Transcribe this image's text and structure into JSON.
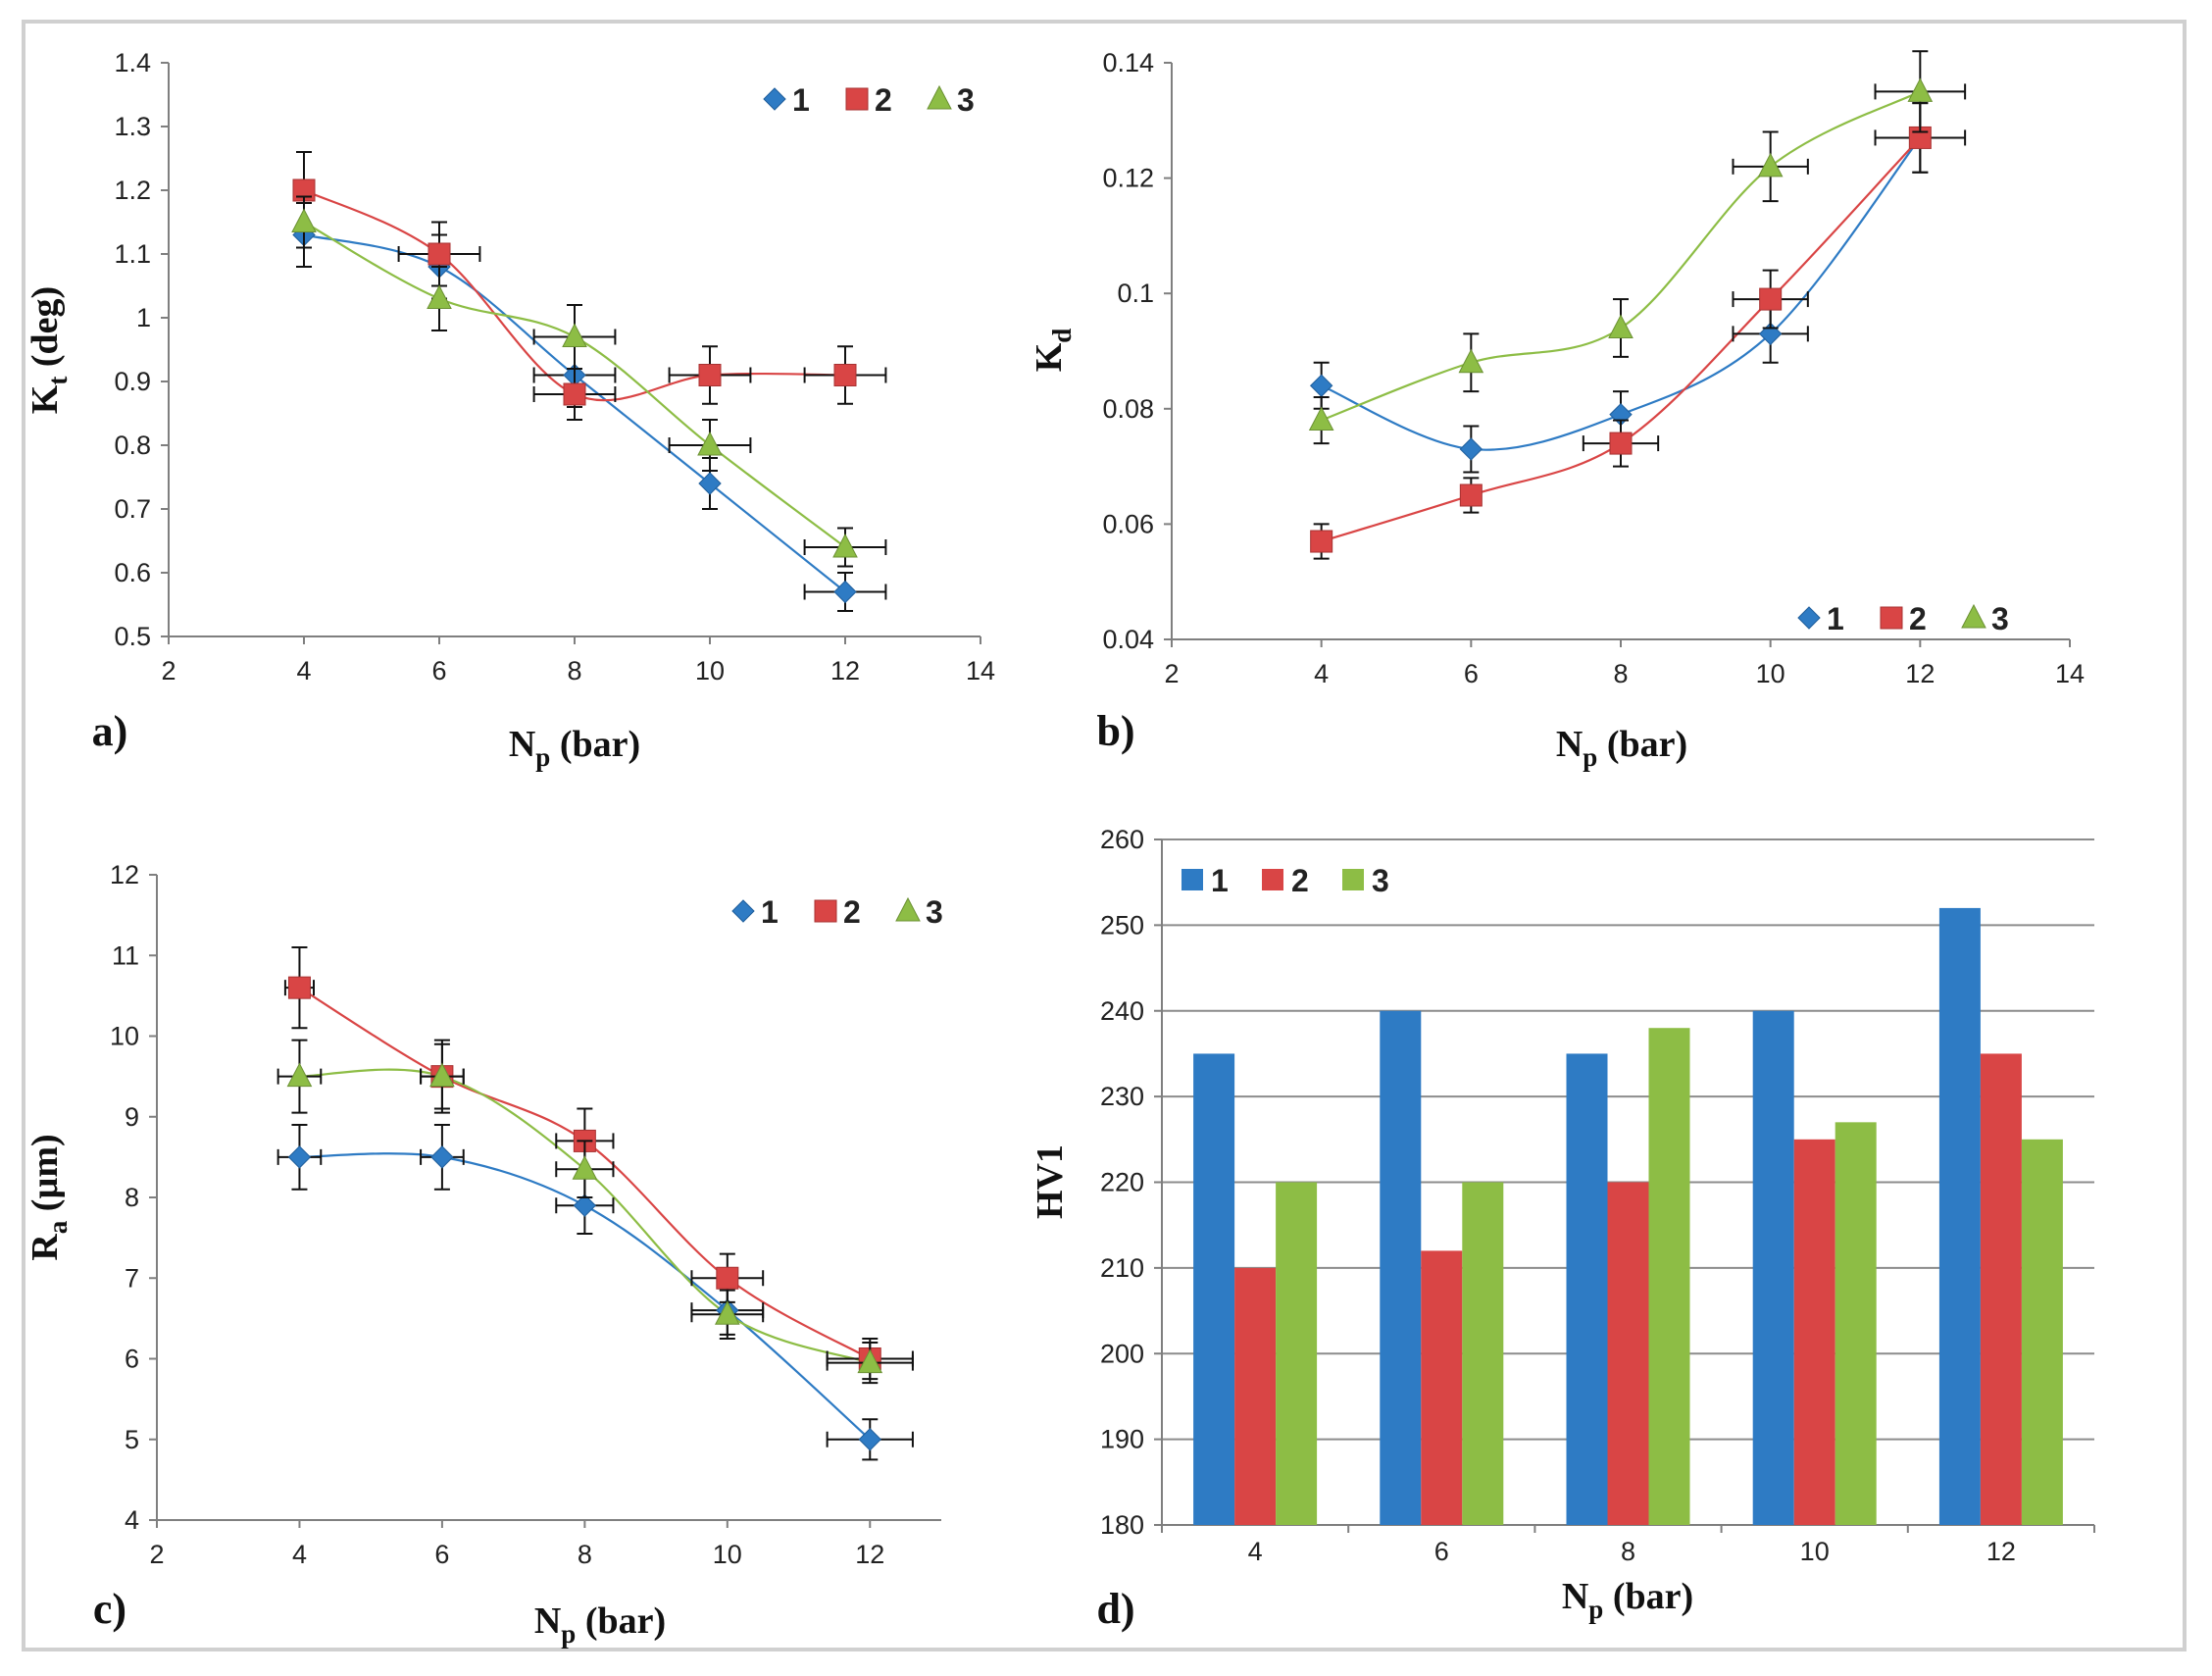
{
  "colors": {
    "s1": "#2E7BC4",
    "s2": "#D94545",
    "s3": "#8DBD45",
    "axis": "#7f7f7f",
    "grid": "#8c8c8c"
  },
  "chart_data": [
    {
      "type": "scatter",
      "panel_label": "a)",
      "xlabel": {
        "main": "N",
        "sub": "p",
        "rest": " (bar)"
      },
      "ylabel": {
        "main": "K",
        "sub": "t",
        "rest": " (deg)"
      },
      "xlim": [
        2,
        14
      ],
      "xticks": [
        "2",
        "4",
        "6",
        "8",
        "10",
        "12",
        "14"
      ],
      "ylim": [
        0.5,
        1.4
      ],
      "yticks": [
        "0.5",
        "0.6",
        "0.7",
        "0.8",
        "0.9",
        "1",
        "1.1",
        "1.2",
        "1.3",
        "1.4"
      ],
      "legend": [
        "1",
        "2",
        "3"
      ],
      "series": [
        {
          "name": "1",
          "x": [
            4,
            6,
            8,
            10,
            12
          ],
          "y": [
            1.13,
            1.08,
            0.91,
            0.74,
            0.57
          ],
          "yerr": [
            0.05,
            0.05,
            0.05,
            0.04,
            0.03
          ],
          "xerr": [
            0,
            0,
            0.6,
            0,
            0.6
          ]
        },
        {
          "name": "2",
          "x": [
            4,
            6,
            8,
            10,
            12
          ],
          "y": [
            1.2,
            1.1,
            0.88,
            0.91,
            0.91
          ],
          "yerr": [
            0.06,
            0.05,
            0.04,
            0.045,
            0.045
          ],
          "xerr": [
            0,
            0.6,
            0.6,
            0.6,
            0.6
          ]
        },
        {
          "name": "3",
          "x": [
            4,
            6,
            8,
            10,
            12
          ],
          "y": [
            1.15,
            1.03,
            0.97,
            0.8,
            0.64
          ],
          "yerr": [
            0.04,
            0.05,
            0.05,
            0.04,
            0.03
          ],
          "xerr": [
            0,
            0,
            0.6,
            0.6,
            0.6
          ]
        }
      ]
    },
    {
      "type": "scatter",
      "panel_label": "b)",
      "xlabel": {
        "main": "N",
        "sub": "p",
        "rest": " (bar)"
      },
      "ylabel": {
        "main": "K",
        "sub": "d",
        "rest": ""
      },
      "xlim": [
        2,
        14
      ],
      "xticks": [
        "2",
        "4",
        "6",
        "8",
        "10",
        "12",
        "14"
      ],
      "ylim": [
        0.04,
        0.14
      ],
      "yticks": [
        "0.04",
        "0.06",
        "0.08",
        "0.1",
        "0.12",
        "0.14"
      ],
      "legend": [
        "1",
        "2",
        "3"
      ],
      "series": [
        {
          "name": "1",
          "x": [
            4,
            6,
            8,
            10,
            12
          ],
          "y": [
            0.084,
            0.073,
            0.079,
            0.093,
            0.127
          ],
          "yerr": [
            0.004,
            0.004,
            0.004,
            0.005,
            0.006
          ],
          "xerr": [
            0,
            0,
            0,
            0.5,
            0
          ]
        },
        {
          "name": "2",
          "x": [
            4,
            6,
            8,
            10,
            12
          ],
          "y": [
            0.057,
            0.065,
            0.074,
            0.099,
            0.127
          ],
          "yerr": [
            0.003,
            0.003,
            0.004,
            0.005,
            0.006
          ],
          "xerr": [
            0,
            0,
            0.5,
            0.5,
            0.6
          ]
        },
        {
          "name": "3",
          "x": [
            4,
            6,
            8,
            10,
            12
          ],
          "y": [
            0.078,
            0.088,
            0.094,
            0.122,
            0.135
          ],
          "yerr": [
            0.004,
            0.005,
            0.005,
            0.006,
            0.007
          ],
          "xerr": [
            0,
            0,
            0,
            0.5,
            0.6
          ]
        }
      ]
    },
    {
      "type": "scatter",
      "panel_label": "c)",
      "xlabel": {
        "main": "N",
        "sub": "p",
        "rest": " (bar)"
      },
      "ylabel": {
        "main": "R",
        "sub": "a",
        "rest": " (µm)"
      },
      "xlim": [
        2,
        13
      ],
      "xticks": [
        "2",
        "4",
        "6",
        "8",
        "10",
        "12"
      ],
      "ylim": [
        4,
        12
      ],
      "yticks": [
        "4",
        "5",
        "6",
        "7",
        "8",
        "9",
        "10",
        "11",
        "12"
      ],
      "legend": [
        "1",
        "2",
        "3"
      ],
      "series": [
        {
          "name": "1",
          "x": [
            4,
            6,
            8,
            10,
            12
          ],
          "y": [
            8.5,
            8.5,
            7.9,
            6.6,
            5.0
          ],
          "yerr": [
            0.4,
            0.4,
            0.35,
            0.3,
            0.25
          ],
          "xerr": [
            0.3,
            0.3,
            0.4,
            0.5,
            0.6
          ]
        },
        {
          "name": "2",
          "x": [
            4,
            6,
            8,
            10,
            12
          ],
          "y": [
            10.6,
            9.5,
            8.7,
            7.0,
            6.0
          ],
          "yerr": [
            0.5,
            0.45,
            0.4,
            0.3,
            0.25
          ],
          "xerr": [
            0.2,
            0.3,
            0.4,
            0.5,
            0.6
          ]
        },
        {
          "name": "3",
          "x": [
            4,
            6,
            8,
            10,
            12
          ],
          "y": [
            9.5,
            9.5,
            8.35,
            6.55,
            5.95
          ],
          "yerr": [
            0.45,
            0.4,
            0.35,
            0.3,
            0.25
          ],
          "xerr": [
            0.3,
            0.3,
            0.4,
            0.5,
            0.6
          ]
        }
      ]
    },
    {
      "type": "bar",
      "panel_label": "d)",
      "xlabel": {
        "main": "N",
        "sub": "p",
        "rest": " (bar)"
      },
      "ylabel": {
        "main": "HV1",
        "sub": "",
        "rest": ""
      },
      "categories": [
        "4",
        "6",
        "8",
        "10",
        "12"
      ],
      "ylim": [
        180,
        260
      ],
      "yticks": [
        "180",
        "190",
        "200",
        "210",
        "220",
        "230",
        "240",
        "250",
        "260"
      ],
      "legend": [
        "1",
        "2",
        "3"
      ],
      "series": [
        {
          "name": "1",
          "values": [
            235,
            240,
            235,
            240,
            252
          ]
        },
        {
          "name": "2",
          "values": [
            210,
            212,
            220,
            225,
            235
          ]
        },
        {
          "name": "3",
          "values": [
            220,
            220,
            238,
            227,
            225
          ]
        }
      ]
    }
  ]
}
